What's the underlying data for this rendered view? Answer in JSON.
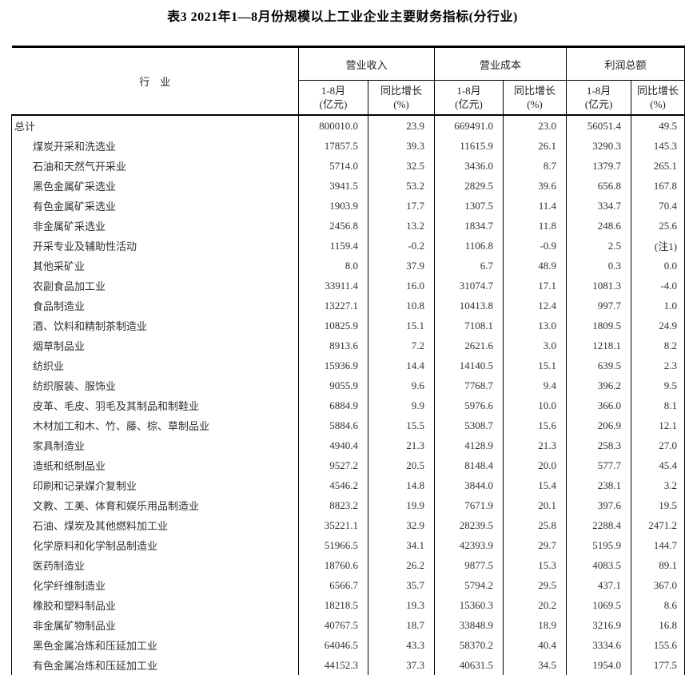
{
  "title": "表3 2021年1—8月份规模以上工业企业主要财务指标(分行业)",
  "table": {
    "industry_header": "行　业",
    "groups": [
      {
        "label": "营业收入"
      },
      {
        "label": "营业成本"
      },
      {
        "label": "利润总额"
      }
    ],
    "sub_headers": {
      "amount_line1": "1-8月",
      "amount_line2": "(亿元)",
      "growth_line1": "同比增长",
      "growth_line2": "(%)"
    },
    "rows": [
      {
        "industry": "总计",
        "indent": 0,
        "values": [
          "800010.0",
          "23.9",
          "669491.0",
          "23.0",
          "56051.4",
          "49.5"
        ]
      },
      {
        "industry": "煤炭开采和洗选业",
        "indent": 1,
        "values": [
          "17857.5",
          "39.3",
          "11615.9",
          "26.1",
          "3290.3",
          "145.3"
        ]
      },
      {
        "industry": "石油和天然气开采业",
        "indent": 1,
        "values": [
          "5714.0",
          "32.5",
          "3436.0",
          "8.7",
          "1379.7",
          "265.1"
        ]
      },
      {
        "industry": "黑色金属矿采选业",
        "indent": 1,
        "values": [
          "3941.5",
          "53.2",
          "2829.5",
          "39.6",
          "656.8",
          "167.8"
        ]
      },
      {
        "industry": "有色金属矿采选业",
        "indent": 1,
        "values": [
          "1903.9",
          "17.7",
          "1307.5",
          "11.4",
          "334.7",
          "70.4"
        ]
      },
      {
        "industry": "非金属矿采选业",
        "indent": 1,
        "values": [
          "2456.8",
          "13.2",
          "1834.7",
          "11.8",
          "248.6",
          "25.6"
        ]
      },
      {
        "industry": "开采专业及辅助性活动",
        "indent": 1,
        "values": [
          "1159.4",
          "-0.2",
          "1106.8",
          "-0.9",
          "2.5",
          "(注1)"
        ]
      },
      {
        "industry": "其他采矿业",
        "indent": 1,
        "values": [
          "8.0",
          "37.9",
          "6.7",
          "48.9",
          "0.3",
          "0.0"
        ]
      },
      {
        "industry": "农副食品加工业",
        "indent": 1,
        "values": [
          "33911.4",
          "16.0",
          "31074.7",
          "17.1",
          "1081.3",
          "-4.0"
        ]
      },
      {
        "industry": "食品制造业",
        "indent": 1,
        "values": [
          "13227.1",
          "10.8",
          "10413.8",
          "12.4",
          "997.7",
          "1.0"
        ]
      },
      {
        "industry": "酒、饮料和精制茶制造业",
        "indent": 1,
        "values": [
          "10825.9",
          "15.1",
          "7108.1",
          "13.0",
          "1809.5",
          "24.9"
        ]
      },
      {
        "industry": "烟草制品业",
        "indent": 1,
        "values": [
          "8913.6",
          "7.2",
          "2621.6",
          "3.0",
          "1218.1",
          "8.2"
        ]
      },
      {
        "industry": "纺织业",
        "indent": 1,
        "values": [
          "15936.9",
          "14.4",
          "14140.5",
          "15.1",
          "639.5",
          "2.3"
        ]
      },
      {
        "industry": "纺织服装、服饰业",
        "indent": 1,
        "values": [
          "9055.9",
          "9.6",
          "7768.7",
          "9.4",
          "396.2",
          "9.5"
        ]
      },
      {
        "industry": "皮革、毛皮、羽毛及其制品和制鞋业",
        "indent": 1,
        "values": [
          "6884.9",
          "9.9",
          "5976.6",
          "10.0",
          "366.0",
          "8.1"
        ]
      },
      {
        "industry": "木材加工和木、竹、藤、棕、草制品业",
        "indent": 1,
        "values": [
          "5884.6",
          "15.5",
          "5308.7",
          "15.6",
          "206.9",
          "12.1"
        ]
      },
      {
        "industry": "家具制造业",
        "indent": 1,
        "values": [
          "4940.4",
          "21.3",
          "4128.9",
          "21.3",
          "258.3",
          "27.0"
        ]
      },
      {
        "industry": "造纸和纸制品业",
        "indent": 1,
        "values": [
          "9527.2",
          "20.5",
          "8148.4",
          "20.0",
          "577.7",
          "45.4"
        ]
      },
      {
        "industry": "印刷和记录媒介复制业",
        "indent": 1,
        "values": [
          "4546.2",
          "14.8",
          "3844.0",
          "15.4",
          "238.1",
          "3.2"
        ]
      },
      {
        "industry": "文教、工美、体育和娱乐用品制造业",
        "indent": 1,
        "values": [
          "8823.2",
          "19.9",
          "7671.9",
          "20.1",
          "397.6",
          "19.5"
        ]
      },
      {
        "industry": "石油、煤炭及其他燃料加工业",
        "indent": 1,
        "values": [
          "35221.1",
          "32.9",
          "28239.5",
          "25.8",
          "2288.4",
          "2471.2"
        ]
      },
      {
        "industry": "化学原料和化学制品制造业",
        "indent": 1,
        "values": [
          "51966.5",
          "34.1",
          "42393.9",
          "29.7",
          "5195.9",
          "144.7"
        ]
      },
      {
        "industry": "医药制造业",
        "indent": 1,
        "values": [
          "18760.6",
          "26.2",
          "9877.5",
          "15.3",
          "4083.5",
          "89.1"
        ]
      },
      {
        "industry": "化学纤维制造业",
        "indent": 1,
        "values": [
          "6566.7",
          "35.7",
          "5794.2",
          "29.5",
          "437.1",
          "367.0"
        ]
      },
      {
        "industry": "橡胶和塑料制品业",
        "indent": 1,
        "values": [
          "18218.5",
          "19.3",
          "15360.3",
          "20.2",
          "1069.5",
          "8.6"
        ]
      },
      {
        "industry": "非金属矿物制品业",
        "indent": 1,
        "values": [
          "40767.5",
          "18.7",
          "33848.9",
          "18.9",
          "3216.9",
          "16.8"
        ]
      },
      {
        "industry": "黑色金属冶炼和压延加工业",
        "indent": 1,
        "values": [
          "64046.5",
          "43.3",
          "58370.2",
          "40.4",
          "3334.6",
          "155.6"
        ]
      },
      {
        "industry": "有色金属冶炼和压延加工业",
        "indent": 1,
        "values": [
          "44152.3",
          "37.3",
          "40631.5",
          "34.5",
          "1954.0",
          "177.5"
        ]
      }
    ]
  }
}
